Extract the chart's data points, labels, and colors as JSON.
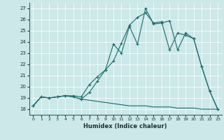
{
  "xlabel": "Humidex (Indice chaleur)",
  "xlim": [
    -0.5,
    23.5
  ],
  "ylim": [
    17.5,
    27.5
  ],
  "xticks": [
    0,
    1,
    2,
    3,
    4,
    5,
    6,
    7,
    8,
    9,
    10,
    11,
    12,
    13,
    14,
    15,
    16,
    17,
    18,
    19,
    20,
    21,
    22,
    23
  ],
  "yticks": [
    18,
    19,
    20,
    21,
    22,
    23,
    24,
    25,
    26,
    27
  ],
  "bg_color": "#cce8e8",
  "line_color": "#1a6b6b",
  "line1_x": [
    0,
    1,
    2,
    3,
    4,
    5,
    6,
    7,
    8,
    9,
    10,
    11,
    12,
    13,
    14,
    15,
    16,
    17,
    18,
    19,
    20,
    21,
    22,
    23
  ],
  "line1_y": [
    18.3,
    19.1,
    19.0,
    19.1,
    19.2,
    19.1,
    18.9,
    19.5,
    20.5,
    21.5,
    23.8,
    23.0,
    25.4,
    23.8,
    27.0,
    25.6,
    25.7,
    25.9,
    23.3,
    24.8,
    24.3,
    21.8,
    19.6,
    18.0
  ],
  "line2_x": [
    0,
    1,
    2,
    3,
    4,
    5,
    6,
    7,
    8,
    9,
    10,
    11,
    12,
    13,
    14,
    15,
    16,
    17,
    18,
    19,
    20,
    21,
    22,
    23
  ],
  "line2_y": [
    18.3,
    19.1,
    19.0,
    19.1,
    19.2,
    19.2,
    19.1,
    20.2,
    20.9,
    21.5,
    22.3,
    23.9,
    25.5,
    26.2,
    26.6,
    25.7,
    25.8,
    23.3,
    24.8,
    24.6,
    24.3,
    21.8,
    19.6,
    18.0
  ],
  "line3_x": [
    0,
    1,
    2,
    3,
    4,
    5,
    6,
    7,
    8,
    9,
    10,
    11,
    12,
    13,
    14,
    15,
    16,
    17,
    18,
    19,
    20,
    21,
    22,
    23
  ],
  "line3_y": [
    18.3,
    19.1,
    19.0,
    19.1,
    19.2,
    19.1,
    18.9,
    18.8,
    18.7,
    18.6,
    18.5,
    18.4,
    18.3,
    18.3,
    18.3,
    18.2,
    18.2,
    18.2,
    18.1,
    18.1,
    18.1,
    18.0,
    18.0,
    18.0
  ]
}
